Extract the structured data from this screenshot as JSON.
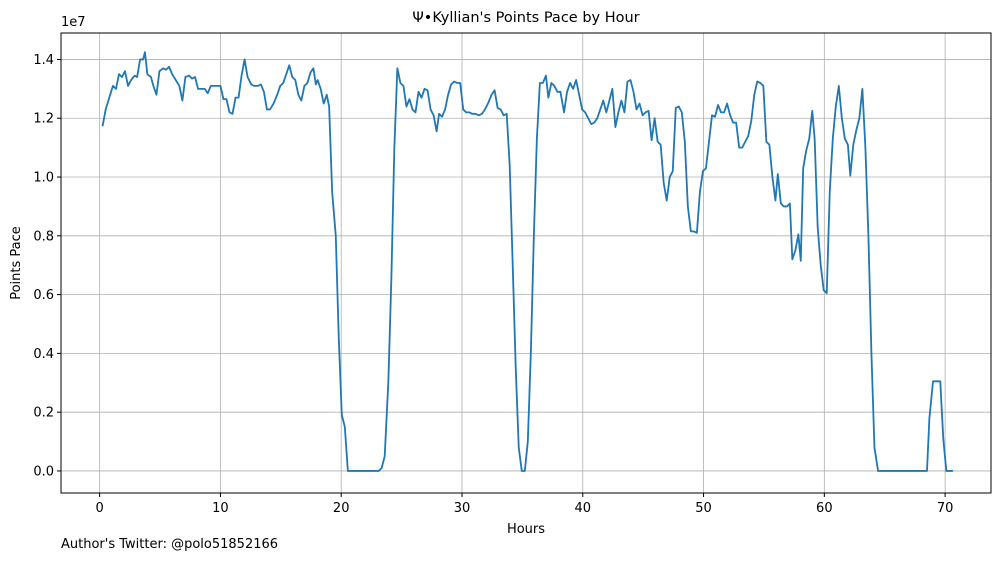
{
  "chart_data": {
    "type": "line",
    "title": "Ψ•Kyllian's Points Pace by Hour",
    "xlabel": "Hours",
    "ylabel": "Points Pace",
    "y_offset_label": "1e7",
    "xlim": [
      -3.2,
      73.8
    ],
    "ylim": [
      -0.075,
      1.49
    ],
    "y_scale_factor": 10000000,
    "x_ticks": [
      0,
      10,
      20,
      30,
      40,
      50,
      60,
      70
    ],
    "x_tick_labels": [
      "0",
      "10",
      "20",
      "30",
      "40",
      "50",
      "60",
      "70"
    ],
    "y_ticks": [
      0,
      0.2,
      0.4,
      0.6,
      0.8,
      1.0,
      1.2,
      1.4
    ],
    "y_tick_labels": [
      "0.0",
      "0.2",
      "0.4",
      "0.6",
      "0.8",
      "1.0",
      "1.2",
      "1.4"
    ],
    "grid": true,
    "color": "#1f77b4",
    "series": [
      {
        "points": [
          [
            0.25,
            1.175
          ],
          [
            0.5,
            1.23
          ],
          [
            0.8,
            1.27
          ],
          [
            1.1,
            1.31
          ],
          [
            1.35,
            1.3
          ],
          [
            1.6,
            1.35
          ],
          [
            1.85,
            1.34
          ],
          [
            2.1,
            1.36
          ],
          [
            2.35,
            1.31
          ],
          [
            2.6,
            1.33
          ],
          [
            2.9,
            1.345
          ],
          [
            3.1,
            1.34
          ],
          [
            3.35,
            1.4
          ],
          [
            3.6,
            1.4
          ],
          [
            3.75,
            1.425
          ],
          [
            3.95,
            1.35
          ],
          [
            4.25,
            1.34
          ],
          [
            4.45,
            1.31
          ],
          [
            4.7,
            1.28
          ],
          [
            4.95,
            1.36
          ],
          [
            5.25,
            1.37
          ],
          [
            5.5,
            1.365
          ],
          [
            5.75,
            1.375
          ],
          [
            6.0,
            1.35
          ],
          [
            6.3,
            1.33
          ],
          [
            6.6,
            1.31
          ],
          [
            6.85,
            1.26
          ],
          [
            7.1,
            1.34
          ],
          [
            7.4,
            1.345
          ],
          [
            7.65,
            1.335
          ],
          [
            7.9,
            1.34
          ],
          [
            8.15,
            1.3
          ],
          [
            8.45,
            1.3
          ],
          [
            8.7,
            1.3
          ],
          [
            8.95,
            1.285
          ],
          [
            9.2,
            1.31
          ],
          [
            9.5,
            1.31
          ],
          [
            9.75,
            1.31
          ],
          [
            10.0,
            1.31
          ],
          [
            10.25,
            1.265
          ],
          [
            10.5,
            1.265
          ],
          [
            10.75,
            1.22
          ],
          [
            11.0,
            1.215
          ],
          [
            11.25,
            1.27
          ],
          [
            11.5,
            1.27
          ],
          [
            11.75,
            1.345
          ],
          [
            12.0,
            1.4
          ],
          [
            12.25,
            1.34
          ],
          [
            12.55,
            1.315
          ],
          [
            12.8,
            1.31
          ],
          [
            13.1,
            1.31
          ],
          [
            13.35,
            1.315
          ],
          [
            13.6,
            1.29
          ],
          [
            13.85,
            1.23
          ],
          [
            14.1,
            1.23
          ],
          [
            14.4,
            1.25
          ],
          [
            14.7,
            1.28
          ],
          [
            14.95,
            1.31
          ],
          [
            15.2,
            1.32
          ],
          [
            15.45,
            1.35
          ],
          [
            15.7,
            1.38
          ],
          [
            15.95,
            1.34
          ],
          [
            16.2,
            1.33
          ],
          [
            16.45,
            1.28
          ],
          [
            16.7,
            1.26
          ],
          [
            16.95,
            1.31
          ],
          [
            17.2,
            1.32
          ],
          [
            17.45,
            1.355
          ],
          [
            17.7,
            1.37
          ],
          [
            17.9,
            1.315
          ],
          [
            18.05,
            1.33
          ],
          [
            18.3,
            1.3
          ],
          [
            18.55,
            1.25
          ],
          [
            18.8,
            1.28
          ],
          [
            19.0,
            1.24
          ],
          [
            19.25,
            0.95
          ],
          [
            19.55,
            0.8
          ],
          [
            19.8,
            0.45
          ],
          [
            20.05,
            0.19
          ],
          [
            20.3,
            0.15
          ],
          [
            20.55,
            0.0
          ],
          [
            20.8,
            0.0
          ],
          [
            21.5,
            0.0
          ],
          [
            22.5,
            0.0
          ],
          [
            23.1,
            0.0
          ],
          [
            23.35,
            0.01
          ],
          [
            23.6,
            0.05
          ],
          [
            23.9,
            0.3
          ],
          [
            24.15,
            0.65
          ],
          [
            24.4,
            1.1
          ],
          [
            24.65,
            1.37
          ],
          [
            24.9,
            1.32
          ],
          [
            25.15,
            1.31
          ],
          [
            25.4,
            1.24
          ],
          [
            25.65,
            1.265
          ],
          [
            25.9,
            1.23
          ],
          [
            26.15,
            1.22
          ],
          [
            26.4,
            1.29
          ],
          [
            26.65,
            1.27
          ],
          [
            26.9,
            1.3
          ],
          [
            27.15,
            1.295
          ],
          [
            27.4,
            1.23
          ],
          [
            27.65,
            1.21
          ],
          [
            27.9,
            1.155
          ],
          [
            28.1,
            1.215
          ],
          [
            28.35,
            1.205
          ],
          [
            28.6,
            1.23
          ],
          [
            28.85,
            1.28
          ],
          [
            29.1,
            1.315
          ],
          [
            29.35,
            1.325
          ],
          [
            29.6,
            1.32
          ],
          [
            29.85,
            1.32
          ],
          [
            30.1,
            1.23
          ],
          [
            30.35,
            1.22
          ],
          [
            30.6,
            1.22
          ],
          [
            30.85,
            1.215
          ],
          [
            31.1,
            1.215
          ],
          [
            31.4,
            1.21
          ],
          [
            31.65,
            1.215
          ],
          [
            31.9,
            1.23
          ],
          [
            32.15,
            1.25
          ],
          [
            32.45,
            1.28
          ],
          [
            32.7,
            1.295
          ],
          [
            32.95,
            1.235
          ],
          [
            33.2,
            1.23
          ],
          [
            33.45,
            1.21
          ],
          [
            33.7,
            1.215
          ],
          [
            33.95,
            1.04
          ],
          [
            34.2,
            0.7
          ],
          [
            34.45,
            0.35
          ],
          [
            34.7,
            0.08
          ],
          [
            34.95,
            0.0
          ],
          [
            35.2,
            0.0
          ],
          [
            35.45,
            0.1
          ],
          [
            35.7,
            0.4
          ],
          [
            35.95,
            0.8
          ],
          [
            36.2,
            1.13
          ],
          [
            36.45,
            1.32
          ],
          [
            36.7,
            1.32
          ],
          [
            36.95,
            1.345
          ],
          [
            37.15,
            1.27
          ],
          [
            37.4,
            1.32
          ],
          [
            37.65,
            1.31
          ],
          [
            37.9,
            1.29
          ],
          [
            38.15,
            1.29
          ],
          [
            38.45,
            1.22
          ],
          [
            38.7,
            1.29
          ],
          [
            38.95,
            1.32
          ],
          [
            39.2,
            1.3
          ],
          [
            39.45,
            1.33
          ],
          [
            39.7,
            1.28
          ],
          [
            39.95,
            1.23
          ],
          [
            40.2,
            1.22
          ],
          [
            40.45,
            1.2
          ],
          [
            40.7,
            1.18
          ],
          [
            40.95,
            1.185
          ],
          [
            41.2,
            1.2
          ],
          [
            41.45,
            1.23
          ],
          [
            41.7,
            1.26
          ],
          [
            41.95,
            1.22
          ],
          [
            42.2,
            1.26
          ],
          [
            42.45,
            1.3
          ],
          [
            42.7,
            1.17
          ],
          [
            42.95,
            1.22
          ],
          [
            43.2,
            1.26
          ],
          [
            43.45,
            1.22
          ],
          [
            43.7,
            1.325
          ],
          [
            43.95,
            1.33
          ],
          [
            44.2,
            1.29
          ],
          [
            44.45,
            1.23
          ],
          [
            44.7,
            1.25
          ],
          [
            44.95,
            1.21
          ],
          [
            45.2,
            1.22
          ],
          [
            45.45,
            1.225
          ],
          [
            45.7,
            1.125
          ],
          [
            45.95,
            1.2
          ],
          [
            46.2,
            1.12
          ],
          [
            46.45,
            1.11
          ],
          [
            46.7,
            0.98
          ],
          [
            46.95,
            0.92
          ],
          [
            47.2,
            1.0
          ],
          [
            47.45,
            1.02
          ],
          [
            47.7,
            1.235
          ],
          [
            47.95,
            1.24
          ],
          [
            48.2,
            1.22
          ],
          [
            48.45,
            1.12
          ],
          [
            48.7,
            0.9
          ],
          [
            48.95,
            0.815
          ],
          [
            49.2,
            0.815
          ],
          [
            49.45,
            0.81
          ],
          [
            49.7,
            0.95
          ],
          [
            49.95,
            1.02
          ],
          [
            50.2,
            1.03
          ],
          [
            50.45,
            1.12
          ],
          [
            50.7,
            1.21
          ],
          [
            50.95,
            1.205
          ],
          [
            51.2,
            1.245
          ],
          [
            51.45,
            1.22
          ],
          [
            51.7,
            1.22
          ],
          [
            51.95,
            1.25
          ],
          [
            52.2,
            1.21
          ],
          [
            52.45,
            1.185
          ],
          [
            52.7,
            1.185
          ],
          [
            52.95,
            1.1
          ],
          [
            53.2,
            1.1
          ],
          [
            53.45,
            1.12
          ],
          [
            53.7,
            1.14
          ],
          [
            53.95,
            1.19
          ],
          [
            54.2,
            1.28
          ],
          [
            54.45,
            1.325
          ],
          [
            54.7,
            1.32
          ],
          [
            54.95,
            1.31
          ],
          [
            55.2,
            1.12
          ],
          [
            55.45,
            1.11
          ],
          [
            55.7,
            1.0
          ],
          [
            55.95,
            0.92
          ],
          [
            56.15,
            1.01
          ],
          [
            56.4,
            0.91
          ],
          [
            56.65,
            0.9
          ],
          [
            56.9,
            0.9
          ],
          [
            57.15,
            0.91
          ],
          [
            57.35,
            0.72
          ],
          [
            57.6,
            0.75
          ],
          [
            57.85,
            0.805
          ],
          [
            58.05,
            0.715
          ],
          [
            58.25,
            1.03
          ],
          [
            58.5,
            1.09
          ],
          [
            58.75,
            1.13
          ],
          [
            59.0,
            1.225
          ],
          [
            59.2,
            1.13
          ],
          [
            59.45,
            0.83
          ],
          [
            59.7,
            0.7
          ],
          [
            59.95,
            0.615
          ],
          [
            60.2,
            0.605
          ],
          [
            60.45,
            0.95
          ],
          [
            60.7,
            1.13
          ],
          [
            60.95,
            1.24
          ],
          [
            61.2,
            1.31
          ],
          [
            61.45,
            1.2
          ],
          [
            61.7,
            1.13
          ],
          [
            61.95,
            1.11
          ],
          [
            62.15,
            1.005
          ],
          [
            62.4,
            1.11
          ],
          [
            62.65,
            1.16
          ],
          [
            62.9,
            1.2
          ],
          [
            63.15,
            1.3
          ],
          [
            63.4,
            1.1
          ],
          [
            63.65,
            0.8
          ],
          [
            63.9,
            0.4
          ],
          [
            64.15,
            0.08
          ],
          [
            64.45,
            0.0
          ],
          [
            65.0,
            0.0
          ],
          [
            66.0,
            0.0
          ],
          [
            67.0,
            0.0
          ],
          [
            68.0,
            0.0
          ],
          [
            68.5,
            0.0
          ],
          [
            68.7,
            0.18
          ],
          [
            69.0,
            0.305
          ],
          [
            69.3,
            0.305
          ],
          [
            69.6,
            0.305
          ],
          [
            69.85,
            0.11
          ],
          [
            70.1,
            0.0
          ],
          [
            70.35,
            0.0
          ],
          [
            70.6,
            0.0
          ]
        ]
      }
    ]
  },
  "footer": {
    "text": "Author's Twitter: @polo51852166"
  }
}
